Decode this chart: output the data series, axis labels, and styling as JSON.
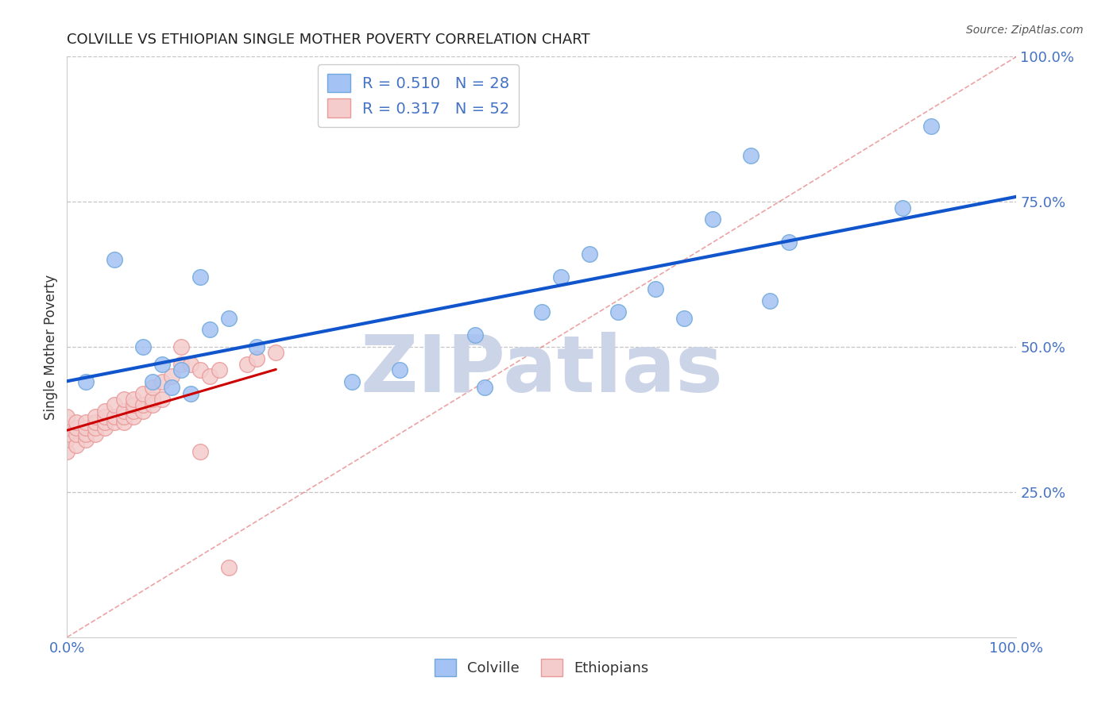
{
  "title": "COLVILLE VS ETHIOPIAN SINGLE MOTHER POVERTY CORRELATION CHART",
  "source": "Source: ZipAtlas.com",
  "ylabel": "Single Mother Poverty",
  "xlim": [
    0.0,
    1.0
  ],
  "ylim": [
    0.0,
    1.0
  ],
  "xticks": [
    0.0,
    0.2,
    0.4,
    0.6,
    0.8,
    1.0
  ],
  "yticks": [
    0.25,
    0.5,
    0.75,
    1.0
  ],
  "ytick_labels": [
    "25.0%",
    "50.0%",
    "75.0%",
    "100.0%"
  ],
  "xtick_labels": [
    "0.0%",
    "",
    "",
    "",
    "",
    "100.0%"
  ],
  "colville_R": 0.51,
  "colville_N": 28,
  "ethiopian_R": 0.317,
  "ethiopian_N": 52,
  "colville_color": "#a4c2f4",
  "colville_edge": "#6fa8dc",
  "ethiopian_color": "#f4cccc",
  "ethiopian_edge": "#ea9999",
  "colville_line_color": "#1155cc",
  "ethiopian_line_color": "#cc0000",
  "ref_line_color": "#e06666",
  "grid_color": "#b7b7b7",
  "title_color": "#222222",
  "axis_label_color": "#333333",
  "tick_color": "#4472c4",
  "colville_x": [
    0.02,
    0.05,
    0.08,
    0.09,
    0.1,
    0.11,
    0.12,
    0.13,
    0.14,
    0.15,
    0.17,
    0.2,
    0.3,
    0.35,
    0.43,
    0.44,
    0.5,
    0.52,
    0.55,
    0.58,
    0.62,
    0.65,
    0.68,
    0.72,
    0.74,
    0.76,
    0.88,
    0.91
  ],
  "colville_y": [
    0.44,
    0.65,
    0.5,
    0.44,
    0.47,
    0.43,
    0.46,
    0.42,
    0.62,
    0.53,
    0.55,
    0.5,
    0.44,
    0.46,
    0.52,
    0.43,
    0.56,
    0.62,
    0.66,
    0.56,
    0.6,
    0.55,
    0.72,
    0.83,
    0.58,
    0.68,
    0.74,
    0.88
  ],
  "ethiopian_x": [
    0.0,
    0.0,
    0.0,
    0.0,
    0.0,
    0.01,
    0.01,
    0.01,
    0.01,
    0.02,
    0.02,
    0.02,
    0.02,
    0.03,
    0.03,
    0.03,
    0.03,
    0.04,
    0.04,
    0.04,
    0.04,
    0.05,
    0.05,
    0.05,
    0.06,
    0.06,
    0.06,
    0.06,
    0.07,
    0.07,
    0.07,
    0.07,
    0.08,
    0.08,
    0.08,
    0.09,
    0.09,
    0.09,
    0.1,
    0.1,
    0.11,
    0.12,
    0.12,
    0.13,
    0.14,
    0.14,
    0.15,
    0.16,
    0.17,
    0.19,
    0.2,
    0.22
  ],
  "ethiopian_y": [
    0.32,
    0.34,
    0.35,
    0.36,
    0.38,
    0.33,
    0.35,
    0.36,
    0.37,
    0.34,
    0.35,
    0.36,
    0.37,
    0.35,
    0.36,
    0.37,
    0.38,
    0.36,
    0.37,
    0.38,
    0.39,
    0.37,
    0.38,
    0.4,
    0.37,
    0.38,
    0.39,
    0.41,
    0.38,
    0.39,
    0.4,
    0.41,
    0.39,
    0.4,
    0.42,
    0.4,
    0.41,
    0.43,
    0.41,
    0.44,
    0.45,
    0.47,
    0.5,
    0.47,
    0.32,
    0.46,
    0.45,
    0.46,
    0.12,
    0.47,
    0.48,
    0.49
  ],
  "watermark_text": "ZIPatlas",
  "watermark_color": "#ccd5e8"
}
